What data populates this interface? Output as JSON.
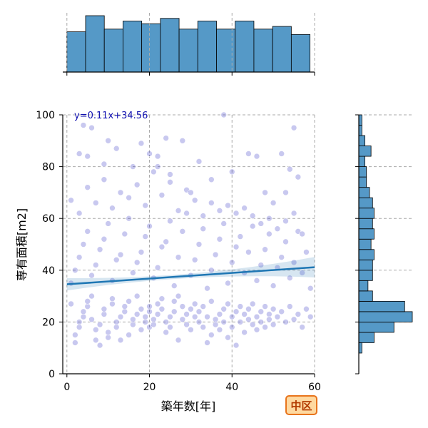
{
  "chart_data": {
    "type": "scatter",
    "x_label": "築年数[年]",
    "y_label": "専有面積[m2]",
    "xlim": [
      -1,
      60
    ],
    "ylim": [
      0,
      100
    ],
    "x_ticks": [
      "0",
      "20",
      "40",
      "60"
    ],
    "y_ticks": [
      "0",
      "20",
      "40",
      "60",
      "80",
      "100"
    ],
    "grid": true,
    "regression": {
      "label": "y=0.11x+34.56",
      "slope": 0.11,
      "intercept": 34.56,
      "color": "#1f77b4"
    },
    "points_color": "#3b3bc6",
    "hist_color": "#5599c7",
    "badge": {
      "text": "中区",
      "fill": "#ffd9a0",
      "stroke": "#e8741c",
      "text_color": "#b23a00"
    },
    "points": [
      [
        2,
        12
      ],
      [
        2,
        15
      ],
      [
        3,
        18
      ],
      [
        3,
        20
      ],
      [
        4,
        22
      ],
      [
        4,
        24
      ],
      [
        5,
        26
      ],
      [
        5,
        28
      ],
      [
        6,
        21
      ],
      [
        6,
        30
      ],
      [
        7,
        13
      ],
      [
        7,
        17
      ],
      [
        8,
        11
      ],
      [
        8,
        19
      ],
      [
        9,
        23
      ],
      [
        9,
        25
      ],
      [
        10,
        14
      ],
      [
        10,
        16
      ],
      [
        11,
        27
      ],
      [
        11,
        29
      ],
      [
        12,
        18
      ],
      [
        12,
        20
      ],
      [
        13,
        22
      ],
      [
        13,
        13
      ],
      [
        14,
        24
      ],
      [
        14,
        26
      ],
      [
        15,
        15
      ],
      [
        15,
        28
      ],
      [
        16,
        19
      ],
      [
        16,
        21
      ],
      [
        17,
        23
      ],
      [
        17,
        30
      ],
      [
        18,
        17
      ],
      [
        18,
        25
      ],
      [
        19,
        20
      ],
      [
        19,
        22
      ],
      [
        20,
        18
      ],
      [
        20,
        24
      ],
      [
        20,
        26
      ],
      [
        21,
        21
      ],
      [
        21,
        19
      ],
      [
        22,
        23
      ],
      [
        22,
        27
      ],
      [
        23,
        25
      ],
      [
        23,
        29
      ],
      [
        24,
        16
      ],
      [
        24,
        20
      ],
      [
        25,
        22
      ],
      [
        25,
        18
      ],
      [
        26,
        24
      ],
      [
        26,
        28
      ],
      [
        27,
        13
      ],
      [
        27,
        30
      ],
      [
        28,
        21
      ],
      [
        28,
        26
      ],
      [
        29,
        19
      ],
      [
        29,
        23
      ],
      [
        30,
        25
      ],
      [
        30,
        17
      ],
      [
        31,
        27
      ],
      [
        31,
        22
      ],
      [
        32,
        20
      ],
      [
        32,
        24
      ],
      [
        33,
        18
      ],
      [
        33,
        26
      ],
      [
        34,
        12
      ],
      [
        34,
        22
      ],
      [
        35,
        15
      ],
      [
        35,
        28
      ],
      [
        36,
        21
      ],
      [
        36,
        19
      ],
      [
        37,
        23
      ],
      [
        37,
        17
      ],
      [
        38,
        25
      ],
      [
        38,
        20
      ],
      [
        39,
        14
      ],
      [
        39,
        27
      ],
      [
        40,
        22
      ],
      [
        40,
        18
      ],
      [
        41,
        11
      ],
      [
        41,
        24
      ],
      [
        42,
        20
      ],
      [
        42,
        26
      ],
      [
        43,
        16
      ],
      [
        43,
        23
      ],
      [
        44,
        21
      ],
      [
        44,
        25
      ],
      [
        45,
        19
      ],
      [
        45,
        27
      ],
      [
        46,
        17
      ],
      [
        46,
        22
      ],
      [
        47,
        24
      ],
      [
        47,
        20
      ],
      [
        48,
        18
      ],
      [
        48,
        26
      ],
      [
        49,
        23
      ],
      [
        49,
        21
      ],
      [
        50,
        25
      ],
      [
        50,
        19
      ],
      [
        51,
        22
      ],
      [
        52,
        24
      ],
      [
        53,
        20
      ],
      [
        54,
        26
      ],
      [
        55,
        21
      ],
      [
        56,
        23
      ],
      [
        57,
        18
      ],
      [
        58,
        25
      ],
      [
        59,
        22
      ],
      [
        1,
        27
      ],
      [
        1,
        35
      ],
      [
        2,
        40
      ],
      [
        3,
        45
      ],
      [
        4,
        50
      ],
      [
        5,
        55
      ],
      [
        6,
        38
      ],
      [
        7,
        42
      ],
      [
        8,
        48
      ],
      [
        9,
        52
      ],
      [
        10,
        58
      ],
      [
        11,
        36
      ],
      [
        12,
        44
      ],
      [
        13,
        46
      ],
      [
        14,
        54
      ],
      [
        15,
        60
      ],
      [
        16,
        39
      ],
      [
        17,
        43
      ],
      [
        18,
        47
      ],
      [
        19,
        53
      ],
      [
        20,
        57
      ],
      [
        21,
        37
      ],
      [
        22,
        41
      ],
      [
        23,
        49
      ],
      [
        24,
        51
      ],
      [
        25,
        59
      ],
      [
        26,
        34
      ],
      [
        27,
        45
      ],
      [
        28,
        55
      ],
      [
        29,
        62
      ],
      [
        30,
        38
      ],
      [
        31,
        44
      ],
      [
        32,
        50
      ],
      [
        33,
        56
      ],
      [
        34,
        33
      ],
      [
        35,
        40
      ],
      [
        36,
        46
      ],
      [
        37,
        52
      ],
      [
        38,
        58
      ],
      [
        39,
        35
      ],
      [
        40,
        43
      ],
      [
        41,
        49
      ],
      [
        42,
        53
      ],
      [
        43,
        39
      ],
      [
        44,
        47
      ],
      [
        45,
        57
      ],
      [
        46,
        36
      ],
      [
        47,
        42
      ],
      [
        48,
        48
      ],
      [
        49,
        54
      ],
      [
        50,
        34
      ],
      [
        51,
        41
      ],
      [
        52,
        45
      ],
      [
        53,
        51
      ],
      [
        54,
        37
      ],
      [
        55,
        43
      ],
      [
        56,
        55
      ],
      [
        57,
        39
      ],
      [
        58,
        47
      ],
      [
        59,
        33
      ],
      [
        1,
        67
      ],
      [
        3,
        62
      ],
      [
        5,
        72
      ],
      [
        7,
        66
      ],
      [
        9,
        75
      ],
      [
        11,
        64
      ],
      [
        13,
        70
      ],
      [
        15,
        68
      ],
      [
        17,
        73
      ],
      [
        19,
        65
      ],
      [
        21,
        78
      ],
      [
        23,
        69
      ],
      [
        25,
        74
      ],
      [
        27,
        63
      ],
      [
        29,
        71
      ],
      [
        31,
        67
      ],
      [
        33,
        61
      ],
      [
        35,
        66
      ],
      [
        37,
        63
      ],
      [
        39,
        65
      ],
      [
        41,
        62
      ],
      [
        43,
        64
      ],
      [
        45,
        61
      ],
      [
        47,
        58
      ],
      [
        49,
        60
      ],
      [
        51,
        56
      ],
      [
        53,
        59
      ],
      [
        55,
        62
      ],
      [
        57,
        54
      ],
      [
        4,
        96
      ],
      [
        6,
        95
      ],
      [
        10,
        90
      ],
      [
        12,
        87
      ],
      [
        18,
        89
      ],
      [
        20,
        85
      ],
      [
        22,
        84
      ],
      [
        24,
        91
      ],
      [
        28,
        90
      ],
      [
        32,
        82
      ],
      [
        38,
        100
      ],
      [
        44,
        85
      ],
      [
        46,
        84
      ],
      [
        52,
        85
      ],
      [
        54,
        79
      ],
      [
        55,
        95
      ],
      [
        56,
        76
      ],
      [
        3,
        85
      ],
      [
        5,
        84
      ],
      [
        9,
        81
      ],
      [
        16,
        80
      ],
      [
        22,
        80
      ],
      [
        25,
        77
      ],
      [
        30,
        70
      ],
      [
        35,
        75
      ],
      [
        40,
        78
      ],
      [
        48,
        70
      ],
      [
        50,
        66
      ],
      [
        53,
        70
      ]
    ]
  }
}
